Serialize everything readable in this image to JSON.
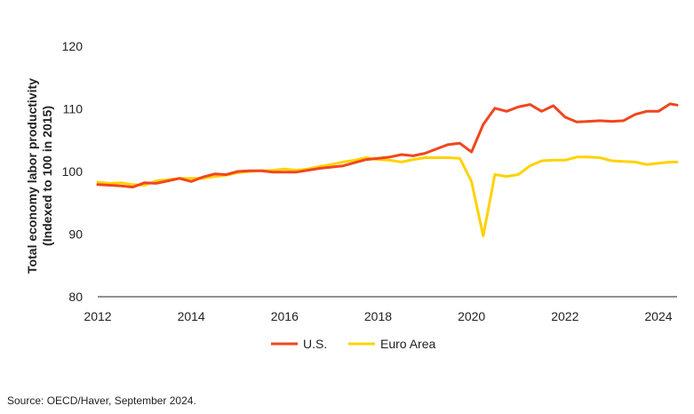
{
  "chart_data": {
    "type": "line",
    "xlabel": "",
    "ylabel": "Total economy  labor productivity (Indexed to 100 in 2015)",
    "ylabel_lines": [
      "Total economy  labor productivity",
      "(Indexed to 100 in 2015)"
    ],
    "ylim": [
      80,
      120
    ],
    "yticks": [
      "80",
      "90",
      "100",
      "110",
      "120"
    ],
    "xlim": [
      2012,
      2024.4
    ],
    "xticks": [
      "2012",
      "2014",
      "2016",
      "2018",
      "2020",
      "2022",
      "2024"
    ],
    "grid": false,
    "legend_position": "bottom",
    "series": [
      {
        "name": "U.S.",
        "color": "#f0461e",
        "x": [
          2012.0,
          2012.25,
          2012.5,
          2012.75,
          2013.0,
          2013.25,
          2013.5,
          2013.75,
          2014.0,
          2014.25,
          2014.5,
          2014.75,
          2015.0,
          2015.25,
          2015.5,
          2015.75,
          2016.0,
          2016.25,
          2016.5,
          2016.75,
          2017.0,
          2017.25,
          2017.5,
          2017.75,
          2018.0,
          2018.25,
          2018.5,
          2018.75,
          2019.0,
          2019.25,
          2019.5,
          2019.75,
          2020.0,
          2020.25,
          2020.5,
          2020.75,
          2021.0,
          2021.25,
          2021.5,
          2021.75,
          2022.0,
          2022.25,
          2022.5,
          2022.75,
          2023.0,
          2023.25,
          2023.5,
          2023.75,
          2024.0,
          2024.25,
          2024.4
        ],
        "values": [
          97.9,
          97.8,
          97.7,
          97.5,
          98.2,
          98.1,
          98.5,
          98.9,
          98.4,
          99.1,
          99.6,
          99.5,
          100.0,
          100.1,
          100.1,
          99.9,
          99.9,
          99.9,
          100.2,
          100.5,
          100.7,
          100.9,
          101.4,
          101.9,
          102.1,
          102.3,
          102.7,
          102.5,
          102.9,
          103.6,
          104.3,
          104.5,
          103.1,
          107.5,
          110.1,
          109.6,
          110.3,
          110.7,
          109.6,
          110.5,
          108.7,
          107.9,
          108.0,
          108.1,
          108.0,
          108.1,
          109.1,
          109.6,
          109.6,
          110.8,
          110.6
        ]
      },
      {
        "name": "Euro Area",
        "color": "#ffd200",
        "x": [
          2012.0,
          2012.25,
          2012.5,
          2012.75,
          2013.0,
          2013.25,
          2013.5,
          2013.75,
          2014.0,
          2014.25,
          2014.5,
          2014.75,
          2015.0,
          2015.25,
          2015.5,
          2015.75,
          2016.0,
          2016.25,
          2016.5,
          2016.75,
          2017.0,
          2017.25,
          2017.5,
          2017.75,
          2018.0,
          2018.25,
          2018.5,
          2018.75,
          2019.0,
          2019.25,
          2019.5,
          2019.75,
          2020.0,
          2020.25,
          2020.5,
          2020.75,
          2021.0,
          2021.25,
          2021.5,
          2021.75,
          2022.0,
          2022.25,
          2022.5,
          2022.75,
          2023.0,
          2023.25,
          2023.5,
          2023.75,
          2024.0,
          2024.25,
          2024.4
        ],
        "values": [
          98.3,
          98.1,
          98.2,
          97.9,
          97.8,
          98.5,
          98.7,
          98.9,
          98.9,
          98.9,
          99.2,
          99.4,
          99.8,
          100.0,
          100.1,
          100.2,
          100.4,
          100.2,
          100.4,
          100.8,
          101.1,
          101.5,
          101.8,
          102.2,
          101.9,
          101.8,
          101.5,
          101.9,
          102.2,
          102.2,
          102.2,
          102.1,
          98.4,
          89.7,
          99.5,
          99.2,
          99.5,
          100.9,
          101.7,
          101.8,
          101.8,
          102.3,
          102.3,
          102.2,
          101.7,
          101.6,
          101.5,
          101.1,
          101.3,
          101.5,
          101.5
        ]
      }
    ]
  },
  "source_text": "Source: OECD/Haver, September 2024."
}
